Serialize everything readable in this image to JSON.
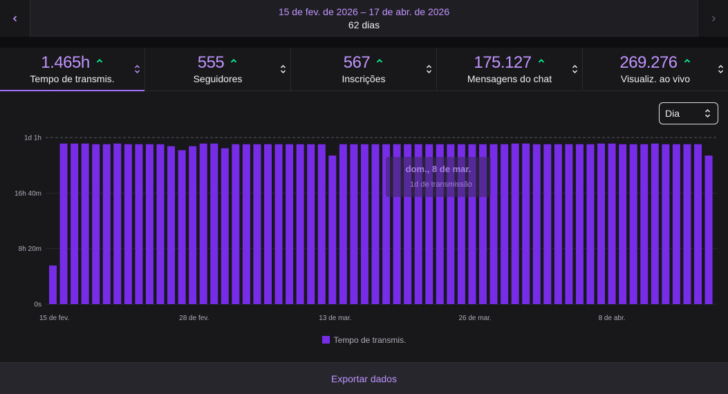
{
  "date_nav": {
    "range": "15 de fev. de 2026 – 17 de abr. de 2026",
    "days": "62 dias"
  },
  "metrics": [
    {
      "value": "1.465h",
      "label": "Tempo de transmis.",
      "active": true
    },
    {
      "value": "555",
      "label": "Seguidores",
      "active": false
    },
    {
      "value": "567",
      "label": "Inscrições",
      "active": false
    },
    {
      "value": "175.127",
      "label": "Mensagens do chat",
      "active": false
    },
    {
      "value": "269.276",
      "label": "Visualiz. ao vivo",
      "active": false
    }
  ],
  "granularity_select": {
    "value": "Dia"
  },
  "tooltip": {
    "title": "dom., 8 de mar.",
    "subtitle": "1d de transmissão"
  },
  "colors": {
    "accent": "#bf94ff",
    "bar": "#772ce8",
    "positive": "#00f593"
  },
  "chart_data": {
    "type": "bar",
    "y_unit": "hours",
    "ylim": [
      0,
      29
    ],
    "yticks": [
      {
        "value": 0,
        "label": "0s"
      },
      {
        "value": 8.333,
        "label": "8h 20m"
      },
      {
        "value": 16.667,
        "label": "16h 40m"
      },
      {
        "value": 25,
        "label": "1d 1h"
      }
    ],
    "xticks": [
      {
        "index": 0,
        "label": "15 de fev."
      },
      {
        "index": 13,
        "label": "28 de fev."
      },
      {
        "index": 26,
        "label": "13 de mar."
      },
      {
        "index": 39,
        "label": "26 de mar."
      },
      {
        "index": 52,
        "label": "8 de abr."
      }
    ],
    "series": [
      {
        "name": "Tempo de transmis.",
        "values": [
          5.8,
          24.1,
          24.1,
          24.1,
          24.0,
          24.0,
          24.1,
          24.0,
          24.0,
          24.0,
          24.0,
          23.7,
          23.1,
          23.7,
          24.1,
          24.1,
          23.4,
          24.0,
          24.0,
          24.0,
          24.0,
          24.0,
          24.0,
          24.0,
          24.0,
          24.0,
          22.3,
          24.0,
          24.0,
          24.0,
          24.0,
          24.0,
          24.0,
          24.0,
          24.0,
          24.0,
          24.0,
          24.0,
          24.0,
          24.0,
          24.0,
          24.0,
          24.0,
          24.1,
          24.1,
          24.0,
          24.0,
          24.0,
          24.0,
          24.0,
          24.0,
          24.1,
          24.1,
          24.0,
          24.0,
          24.0,
          24.1,
          24.0,
          24.0,
          24.0,
          24.0,
          22.3
        ]
      }
    ]
  },
  "legend": {
    "label": "Tempo de transmis."
  },
  "footer": {
    "export_label": "Exportar dados"
  }
}
